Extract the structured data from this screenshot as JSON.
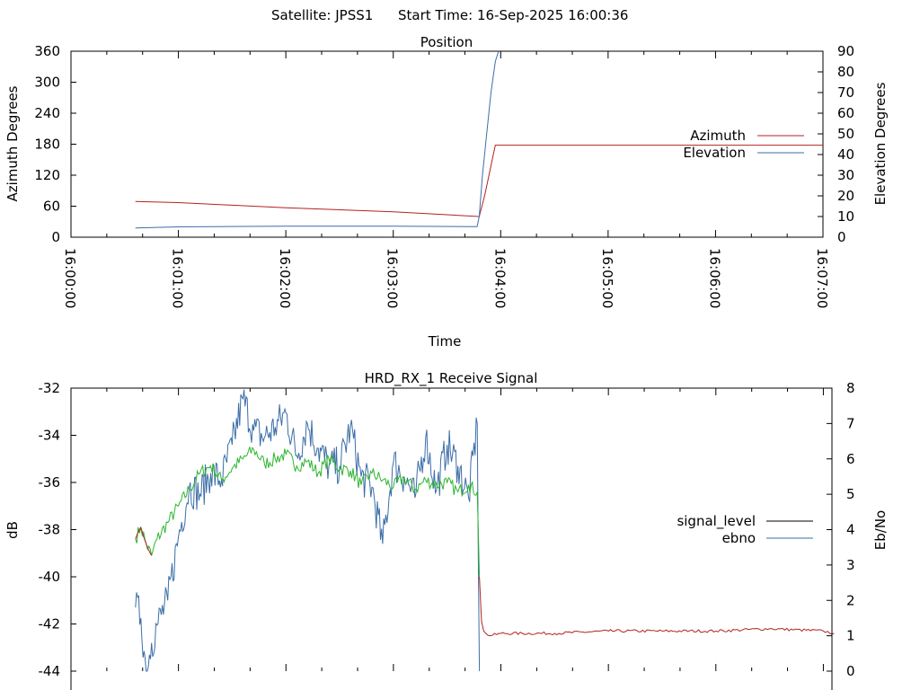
{
  "header": {
    "satellite": "Satellite: JPSS1",
    "start_time": "Start Time: 16-Sep-2025 16:00:36"
  },
  "chart_data": [
    {
      "type": "line",
      "title": "Position",
      "xlabel": "Time",
      "ylabel": "Azimuth Degrees",
      "y2label": "Elevation Degrees",
      "ylim": [
        0,
        360
      ],
      "y2lim": [
        0,
        90
      ],
      "xlim_min": [
        0,
        7
      ],
      "xticks": [
        "16:00:00",
        "16:01:00",
        "16:02:00",
        "16:03:00",
        "16:04:00",
        "16:05:00",
        "16:06:00",
        "16:07:00"
      ],
      "yticks": [
        "0",
        "60",
        "120",
        "180",
        "240",
        "300",
        "360"
      ],
      "y2ticks": [
        "0",
        "10",
        "20",
        "30",
        "40",
        "50",
        "60",
        "70",
        "80",
        "90"
      ],
      "legend_position": "right",
      "series": [
        {
          "name": "Azimuth",
          "axis": "left",
          "color": "#b22222",
          "x": [
            0.6,
            1.0,
            2.0,
            3.0,
            3.8,
            3.85,
            3.95,
            7.0
          ],
          "y": [
            69,
            67,
            57,
            49,
            40,
            80,
            178,
            178
          ]
        },
        {
          "name": "Elevation",
          "axis": "right",
          "color": "#3c6ea8",
          "x": [
            0.6,
            1.0,
            2.0,
            3.0,
            3.78,
            3.8,
            3.83,
            3.87,
            3.91,
            3.95,
            3.98
          ],
          "y": [
            4.5,
            5.0,
            5.3,
            5.3,
            5.1,
            10,
            30,
            50,
            70,
            85,
            90
          ]
        }
      ]
    },
    {
      "type": "line",
      "title": "HRD_RX_1 Receive Signal",
      "ylabel": "dB",
      "y2label": "Eb/No",
      "ylim": [
        -44,
        -32
      ],
      "y2lim": [
        0,
        8
      ],
      "yticks": [
        "-32",
        "-34",
        "-36",
        "-38",
        "-40",
        "-42",
        "-44"
      ],
      "y2ticks": [
        "0",
        "1",
        "2",
        "3",
        "4",
        "5",
        "6",
        "7",
        "8"
      ],
      "legend_position": "right",
      "series": [
        {
          "name": "signal_level",
          "axis": "left",
          "color": "#2db52d",
          "tail_color": "#b22222",
          "x": [
            0.6,
            0.65,
            0.7,
            0.75,
            0.8,
            0.9,
            1.0,
            1.1,
            1.2,
            1.3,
            1.4,
            1.5,
            1.6,
            1.7,
            1.8,
            1.9,
            2.0,
            2.1,
            2.2,
            2.3,
            2.4,
            2.5,
            2.6,
            2.7,
            2.8,
            2.9,
            3.0,
            3.1,
            3.2,
            3.3,
            3.4,
            3.5,
            3.6,
            3.7,
            3.78,
            3.8,
            3.82,
            3.84,
            3.86,
            3.9,
            4.0,
            4.5,
            5.0,
            5.5,
            6.0,
            6.5,
            7.0,
            7.1
          ],
          "y": [
            -38.4,
            -37.9,
            -38.6,
            -39.1,
            -38.4,
            -37.7,
            -37.0,
            -36.3,
            -35.6,
            -35.3,
            -35.9,
            -35.4,
            -35.0,
            -34.6,
            -35.2,
            -35.0,
            -34.8,
            -35.3,
            -35.1,
            -35.6,
            -35.0,
            -35.4,
            -35.5,
            -36.1,
            -35.6,
            -35.9,
            -36.2,
            -35.8,
            -36.3,
            -35.9,
            -36.1,
            -36.0,
            -36.4,
            -36.1,
            -36.4,
            -40.0,
            -41.9,
            -42.3,
            -42.4,
            -42.5,
            -42.4,
            -42.4,
            -42.3,
            -42.3,
            -42.3,
            -42.2,
            -42.3,
            -42.4
          ]
        },
        {
          "name": "ebno",
          "axis": "right",
          "color": "#3c6ea8",
          "x": [
            0.6,
            0.65,
            0.7,
            0.75,
            0.8,
            0.9,
            1.0,
            1.1,
            1.2,
            1.3,
            1.4,
            1.5,
            1.6,
            1.7,
            1.8,
            1.9,
            2.0,
            2.1,
            2.2,
            2.3,
            2.4,
            2.5,
            2.6,
            2.7,
            2.8,
            2.9,
            3.0,
            3.1,
            3.2,
            3.3,
            3.4,
            3.5,
            3.6,
            3.7,
            3.78,
            3.8
          ],
          "y": [
            1.8,
            1.5,
            0.0,
            0.8,
            1.3,
            2.0,
            3.8,
            5.2,
            5.0,
            5.6,
            5.4,
            6.4,
            7.7,
            6.8,
            6.6,
            6.9,
            7.3,
            6.1,
            7.0,
            6.3,
            5.8,
            5.8,
            6.9,
            5.5,
            5.2,
            3.6,
            5.9,
            5.5,
            4.9,
            6.6,
            5.1,
            6.4,
            5.8,
            4.9,
            7.0,
            0.0
          ]
        }
      ]
    }
  ]
}
